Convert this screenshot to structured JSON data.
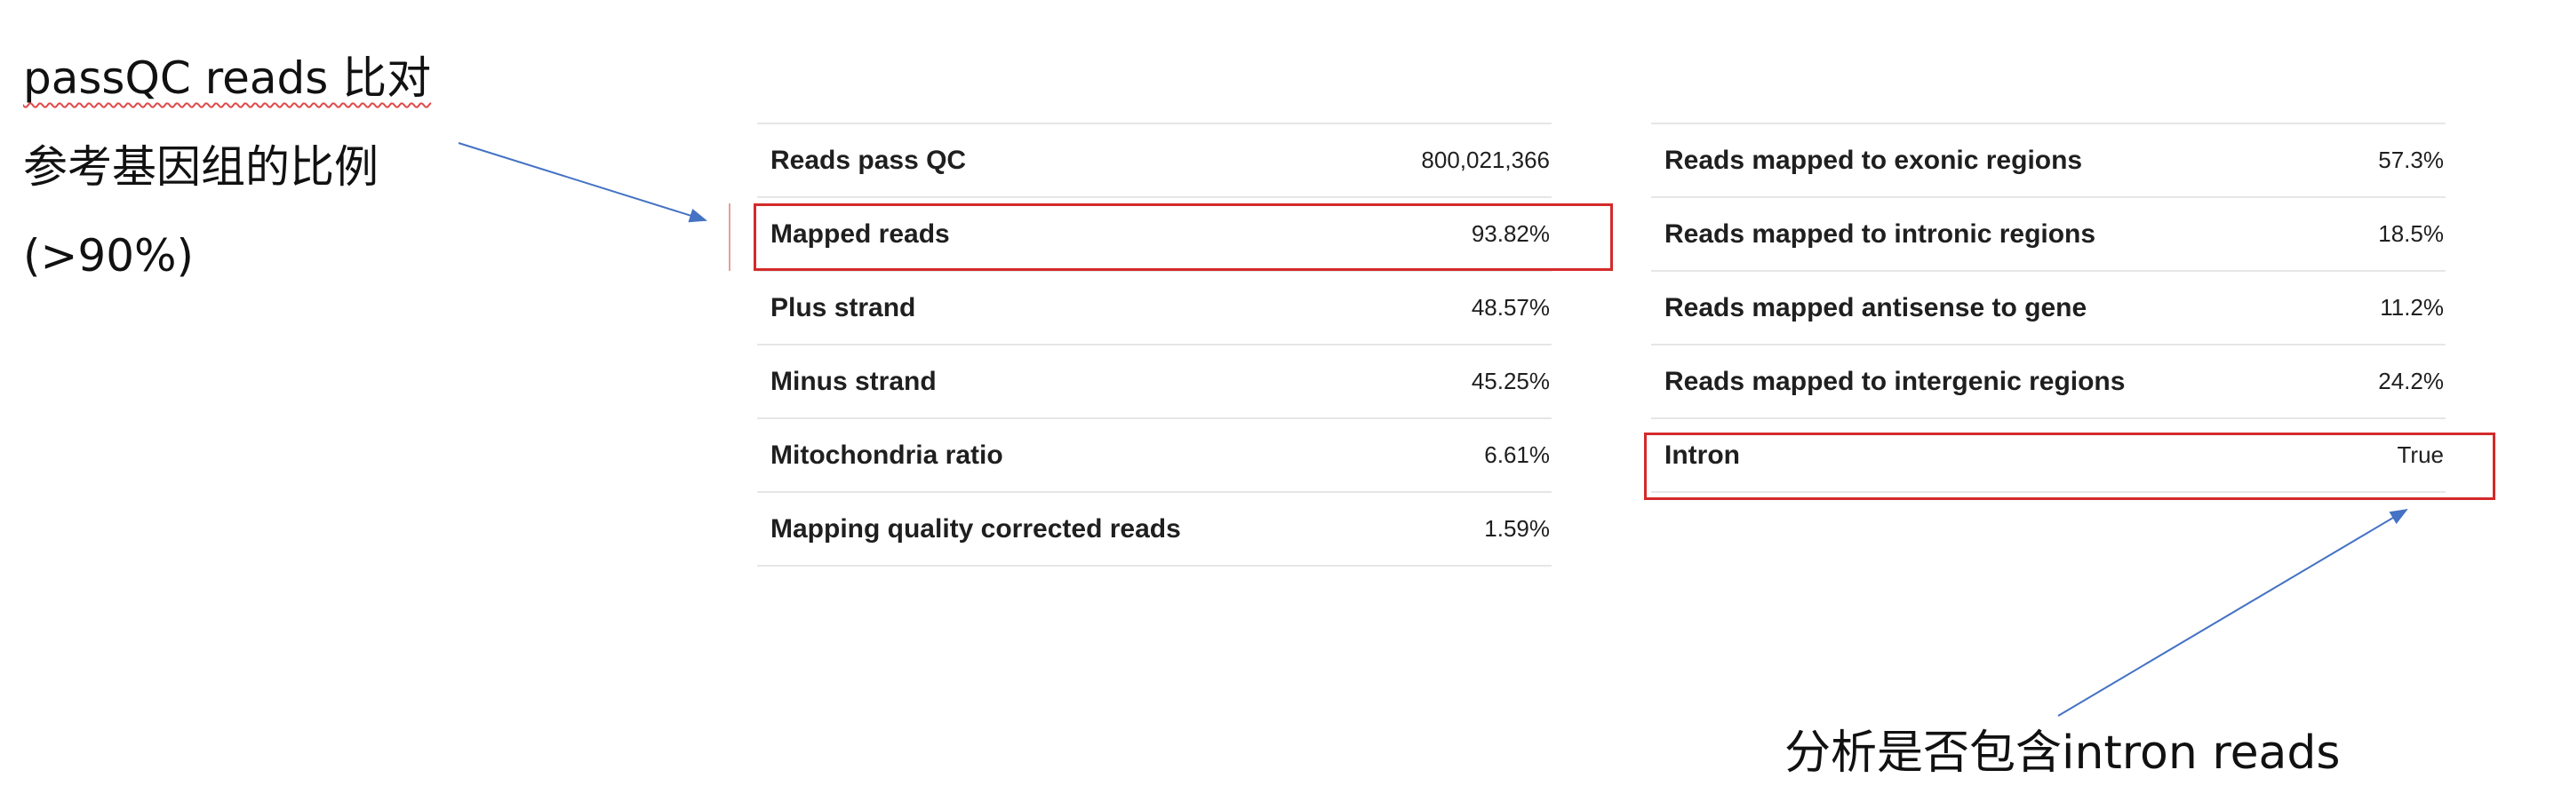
{
  "annotations": {
    "left_lines": [
      "passQC reads 比对",
      "参考基因组的比例",
      "(>90%)"
    ],
    "bottom": "分析是否包含intron reads"
  },
  "table_left": {
    "rows": [
      {
        "label": "Reads pass QC",
        "value": "800,021,366"
      },
      {
        "label": "Mapped reads",
        "value": "93.82%"
      },
      {
        "label": "Plus strand",
        "value": "48.57%"
      },
      {
        "label": "Minus strand",
        "value": "45.25%"
      },
      {
        "label": "Mitochondria ratio",
        "value": "6.61%"
      },
      {
        "label": "Mapping quality corrected reads",
        "value": "1.59%"
      }
    ]
  },
  "table_right": {
    "rows": [
      {
        "label": "Reads mapped to exonic regions",
        "value": "57.3%"
      },
      {
        "label": "Reads mapped to intronic regions",
        "value": "18.5%"
      },
      {
        "label": "Reads mapped antisense to gene",
        "value": "11.2%"
      },
      {
        "label": "Reads mapped to intergenic regions",
        "value": "24.2%"
      },
      {
        "label": "Intron",
        "value": "True"
      }
    ]
  },
  "colors": {
    "highlight": "#d42a2a",
    "arrow": "#4472c4",
    "divider": "#e6e6e6"
  }
}
